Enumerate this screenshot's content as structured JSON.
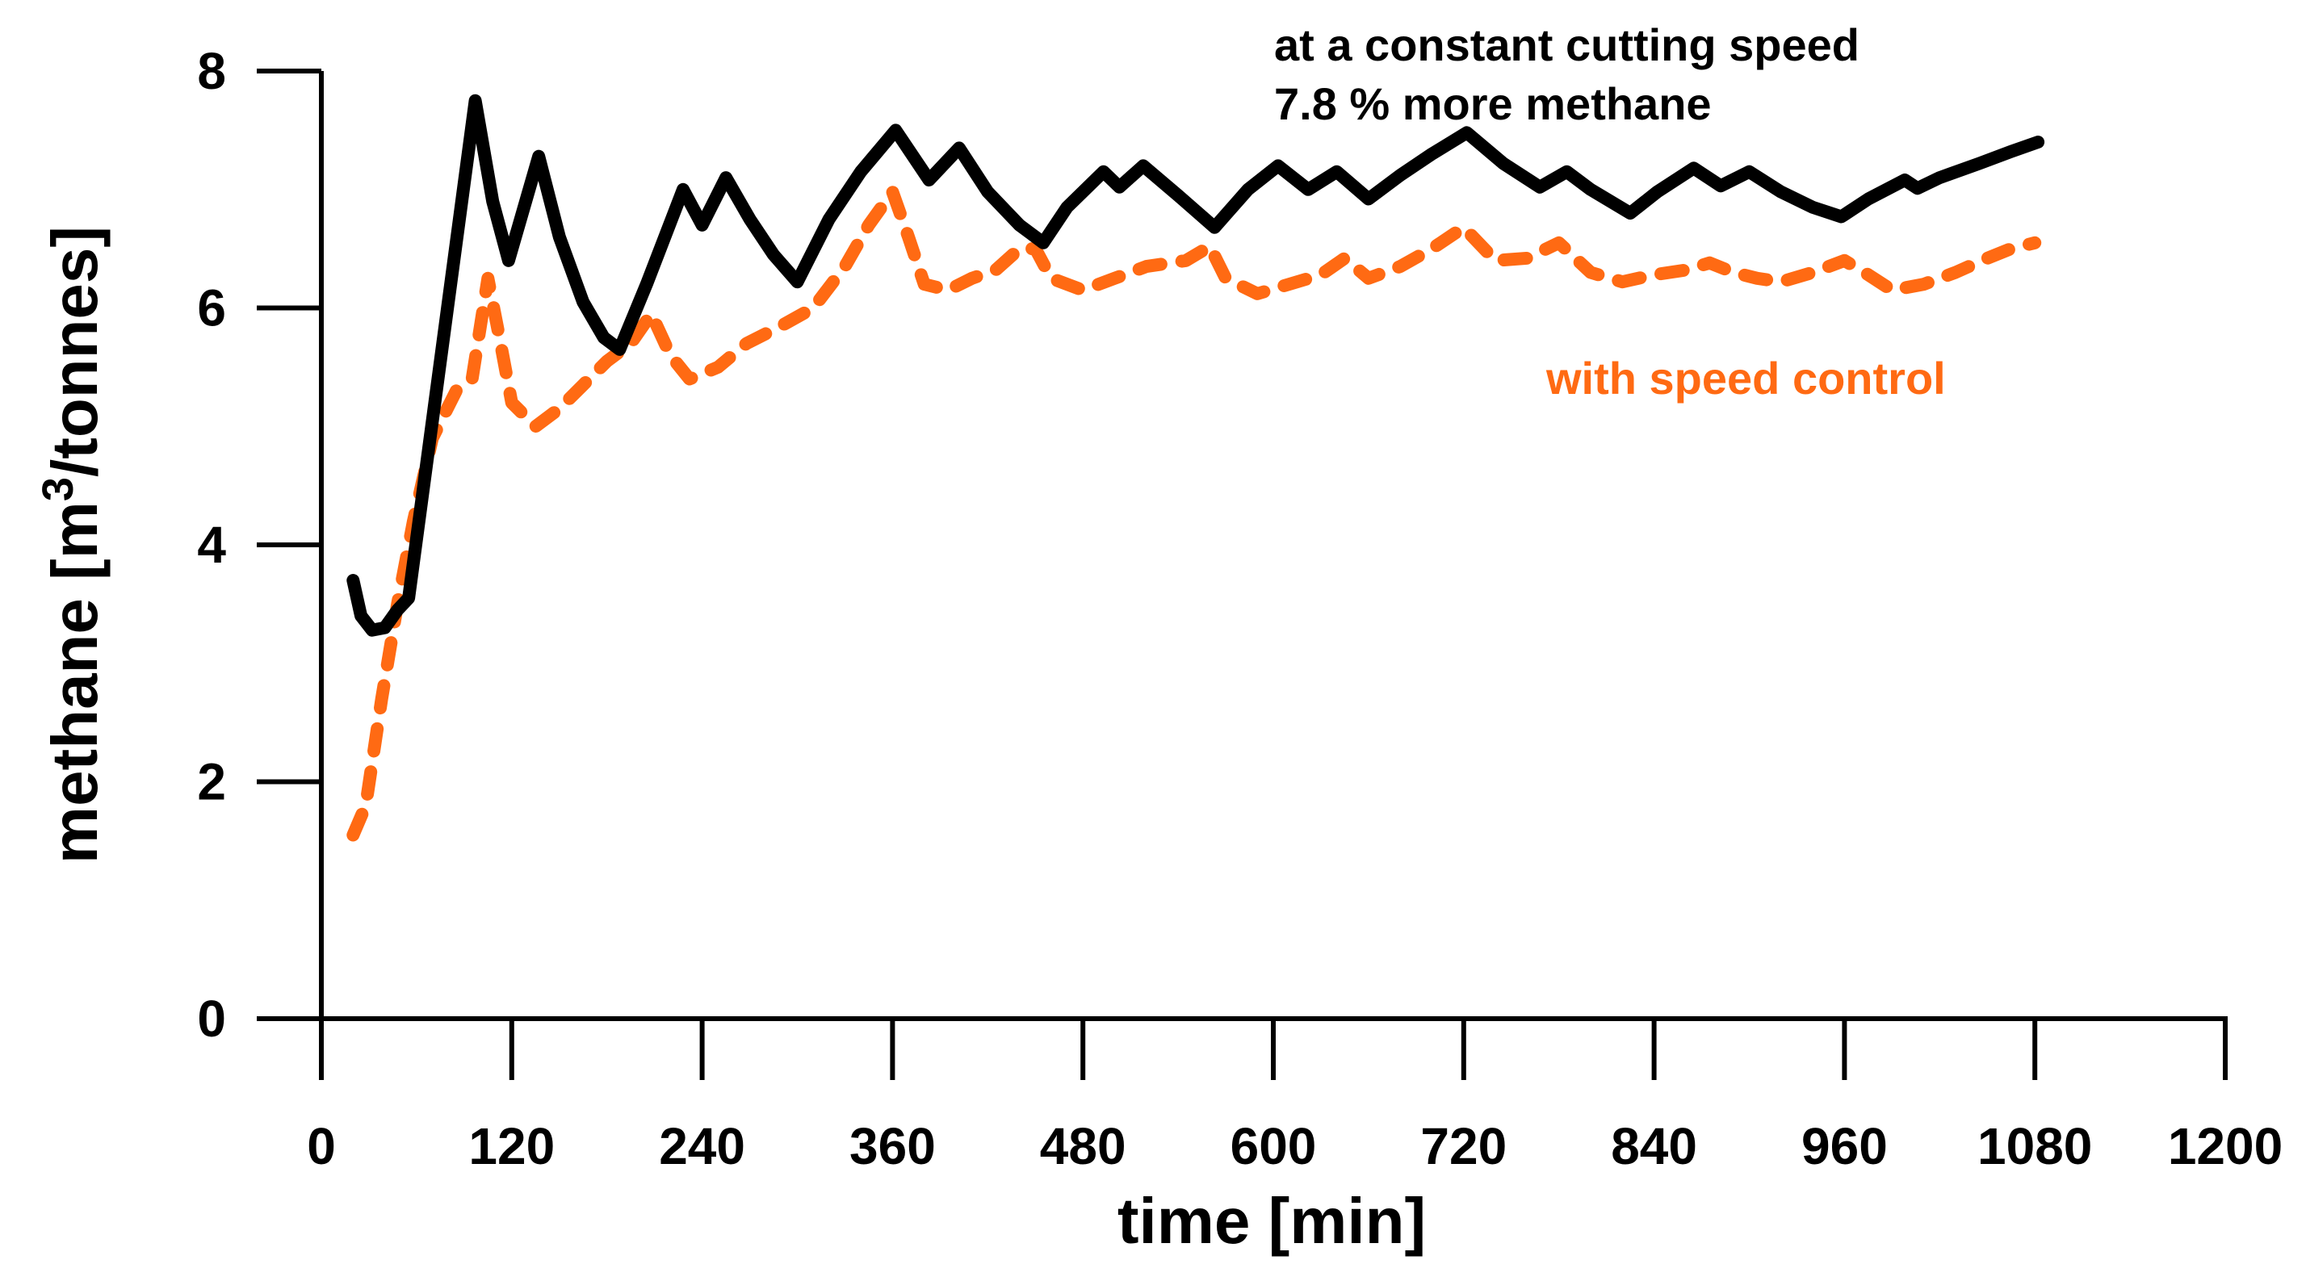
{
  "chart_data": {
    "type": "line",
    "title": "",
    "xlabel": "time [min]",
    "ylabel": "methane  [m³/tonnes]",
    "ylabel_parts": {
      "pre": "methane  [m",
      "sup": "3",
      "post": "/tonnes]"
    },
    "xlim": [
      0,
      1200
    ],
    "ylim": [
      0,
      8
    ],
    "xticks": [
      0,
      120,
      240,
      360,
      480,
      600,
      720,
      840,
      960,
      1080,
      1200
    ],
    "yticks": [
      0,
      2,
      4,
      6,
      8
    ],
    "grid": false,
    "annotations": [
      {
        "id": "constant-speed-line1",
        "text": "at a constant cutting speed",
        "color": "#000000"
      },
      {
        "id": "constant-speed-line2",
        "text": "7.8 %  more  methane",
        "color": "#000000"
      },
      {
        "id": "speed-control-label",
        "text": "with speed control",
        "color": "#FF6A13"
      }
    ],
    "series": [
      {
        "name": "at a constant cutting speed",
        "color": "#000000",
        "style": "solid",
        "x": [
          20,
          25,
          32,
          40,
          48,
          55,
          97,
          108,
          118,
          137,
          150,
          165,
          178,
          188,
          205,
          228,
          240,
          255,
          270,
          285,
          300,
          320,
          340,
          362,
          383,
          402,
          420,
          440,
          455,
          470,
          493,
          503,
          518,
          540,
          563,
          584,
          603,
          622,
          640,
          660,
          680,
          700,
          722,
          745,
          768,
          785,
          800,
          825,
          842,
          865,
          882,
          900,
          920,
          940,
          958,
          975,
          998,
          1006,
          1020,
          1045,
          1065,
          1082
        ],
        "values": [
          3.7,
          3.4,
          3.28,
          3.3,
          3.45,
          3.55,
          7.75,
          6.9,
          6.4,
          7.28,
          6.6,
          6.05,
          5.75,
          5.65,
          6.2,
          7.0,
          6.7,
          7.1,
          6.75,
          6.45,
          6.22,
          6.75,
          7.15,
          7.5,
          7.08,
          7.35,
          6.98,
          6.7,
          6.55,
          6.85,
          7.15,
          7.02,
          7.2,
          6.95,
          6.68,
          7.0,
          7.2,
          7.0,
          7.15,
          6.92,
          7.12,
          7.3,
          7.48,
          7.22,
          7.02,
          7.15,
          7.0,
          6.8,
          6.98,
          7.18,
          7.03,
          7.15,
          6.98,
          6.85,
          6.77,
          6.92,
          7.08,
          7.01,
          7.1,
          7.22,
          7.32,
          7.4
        ]
      },
      {
        "name": "with speed control",
        "color": "#FF6A13",
        "style": "dashed",
        "x": [
          20,
          28,
          38,
          48,
          58,
          70,
          85,
          95,
          105,
          113,
          120,
          135,
          150,
          165,
          180,
          195,
          208,
          220,
          232,
          250,
          268,
          290,
          310,
          330,
          345,
          360,
          370,
          380,
          395,
          410,
          425,
          440,
          450,
          460,
          480,
          500,
          520,
          545,
          560,
          570,
          590,
          610,
          630,
          645,
          660,
          680,
          700,
          720,
          740,
          760,
          780,
          800,
          820,
          840,
          860,
          875,
          890,
          905,
          920,
          940,
          960,
          975,
          990,
          1010,
          1030,
          1050,
          1065,
          1080
        ],
        "values": [
          1.55,
          1.8,
          2.7,
          3.5,
          4.2,
          4.9,
          5.3,
          5.4,
          6.25,
          5.7,
          5.2,
          5.0,
          5.15,
          5.35,
          5.55,
          5.7,
          5.95,
          5.6,
          5.4,
          5.5,
          5.7,
          5.85,
          6.0,
          6.35,
          6.7,
          6.98,
          6.6,
          6.2,
          6.15,
          6.25,
          6.32,
          6.5,
          6.5,
          6.25,
          6.15,
          6.25,
          6.35,
          6.4,
          6.52,
          6.25,
          6.12,
          6.2,
          6.28,
          6.42,
          6.25,
          6.35,
          6.5,
          6.68,
          6.4,
          6.42,
          6.55,
          6.3,
          6.22,
          6.28,
          6.32,
          6.38,
          6.3,
          6.25,
          6.22,
          6.3,
          6.4,
          6.28,
          6.15,
          6.2,
          6.3,
          6.42,
          6.5,
          6.55
        ]
      }
    ]
  }
}
